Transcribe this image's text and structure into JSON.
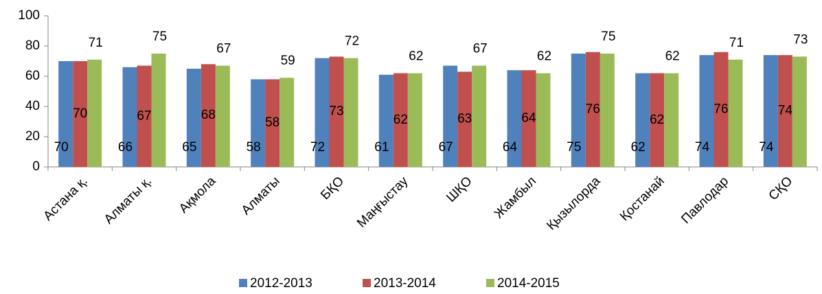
{
  "chart_data": {
    "type": "bar",
    "categories": [
      "Астана қ.",
      "Алматы қ.",
      "Ақмола",
      "Алматы",
      "БҚО",
      "Маңғыстау",
      "ШҚО",
      "Жамбыл",
      "Қызылорда",
      "Қостанай",
      "Павлодар",
      "СҚО"
    ],
    "series": [
      {
        "name": "2012-2013",
        "color": "#4f81bd",
        "values": [
          70,
          66,
          65,
          58,
          72,
          61,
          67,
          64,
          75,
          62,
          74,
          74
        ]
      },
      {
        "name": "2013-2014",
        "color": "#c0504d",
        "values": [
          70,
          67,
          68,
          58,
          73,
          62,
          63,
          64,
          76,
          62,
          76,
          74
        ]
      },
      {
        "name": "2014-2015",
        "color": "#9bbb59",
        "values": [
          71,
          75,
          67,
          59,
          72,
          62,
          67,
          62,
          75,
          62,
          71,
          73
        ]
      }
    ],
    "ylim": [
      0,
      100
    ],
    "yticks": [
      0,
      20,
      40,
      60,
      80,
      100
    ],
    "legend": "bottom"
  }
}
